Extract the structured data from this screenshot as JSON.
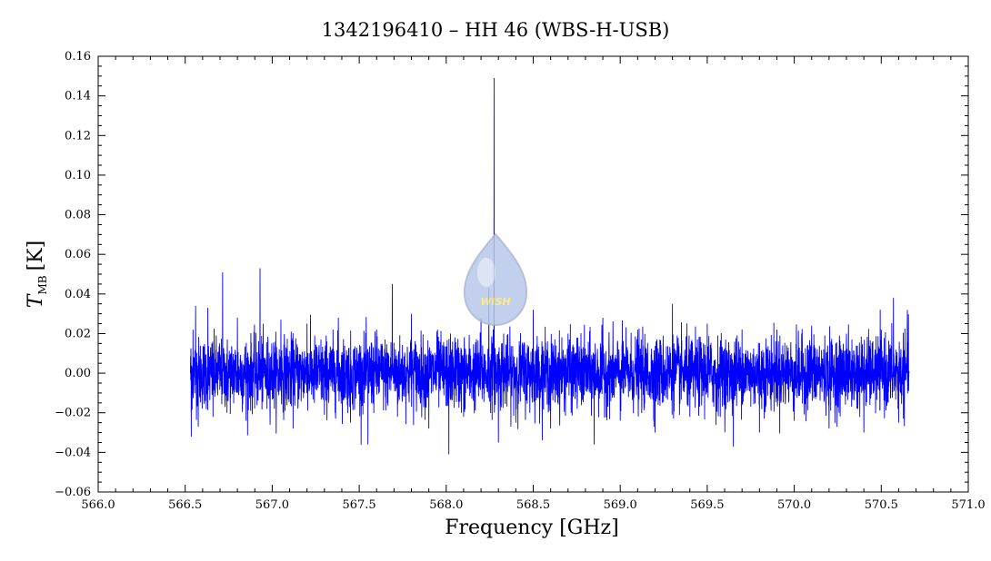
{
  "colors": {
    "series": "#0000ff",
    "axis": "#000000",
    "background": "#ffffff",
    "logo_fill": "#b8c8ea",
    "logo_text": "#ffe96a"
  },
  "logo": {
    "icon": "wish-drop-logo",
    "text": "WISH"
  },
  "chart_data": {
    "type": "line",
    "title": "1342196410 – HH 46 (WBS-H-USB)",
    "xlabel": "Frequency [GHz]",
    "ylabel": {
      "symbol": "T",
      "subscript": "MB",
      "unit": "[K]"
    },
    "xlim": [
      566.0,
      571.0
    ],
    "ylim": [
      -0.06,
      0.16
    ],
    "x_ticks": [
      566.0,
      566.5,
      567.0,
      567.5,
      568.0,
      568.5,
      569.0,
      569.5,
      570.0,
      570.5,
      571.0
    ],
    "x_tick_labels": [
      "566.0",
      "566.5",
      "567.0",
      "567.5",
      "568.0",
      "568.5",
      "569.0",
      "569.5",
      "570.0",
      "570.5",
      "571.0"
    ],
    "y_ticks": [
      -0.06,
      -0.04,
      -0.02,
      0.0,
      0.02,
      0.04,
      0.06,
      0.08,
      0.1,
      0.12,
      0.14,
      0.16
    ],
    "y_tick_labels": [
      "−0.06",
      "−0.04",
      "−0.02",
      "0.00",
      "0.02",
      "0.04",
      "0.06",
      "0.08",
      "0.10",
      "0.12",
      "0.14",
      "0.16"
    ],
    "grid": false,
    "legend": "none",
    "series": [
      {
        "data_range": [
          566.53,
          570.66
        ],
        "noise_rms": 0.009,
        "points": [
          [
            566.53,
            0.0
          ],
          [
            566.535,
            -0.032
          ],
          [
            566.545,
            0.022
          ],
          [
            566.56,
            0.034
          ],
          [
            566.575,
            -0.027
          ],
          [
            566.63,
            0.033
          ],
          [
            566.66,
            -0.022
          ],
          [
            566.715,
            0.051
          ],
          [
            566.74,
            -0.02
          ],
          [
            566.8,
            0.028
          ],
          [
            566.85,
            -0.024
          ],
          [
            566.93,
            0.053
          ],
          [
            566.97,
            -0.018
          ],
          [
            567.05,
            0.027
          ],
          [
            567.12,
            -0.028
          ],
          [
            567.2,
            0.025
          ],
          [
            567.3,
            -0.021
          ],
          [
            567.38,
            0.028
          ],
          [
            567.45,
            -0.025
          ],
          [
            567.55,
            -0.036
          ],
          [
            567.6,
            0.022
          ],
          [
            567.69,
            0.045
          ],
          [
            567.72,
            -0.022
          ],
          [
            567.8,
            0.03
          ],
          [
            567.9,
            -0.028
          ],
          [
            567.95,
            0.022
          ],
          [
            568.015,
            -0.041
          ],
          [
            568.05,
            0.018
          ],
          [
            568.1,
            -0.022
          ],
          [
            568.2,
            0.028
          ],
          [
            568.245,
            0.043
          ],
          [
            568.27,
            0.022
          ],
          [
            568.275,
            0.149
          ],
          [
            568.285,
            0.0
          ],
          [
            568.3,
            -0.035
          ],
          [
            568.33,
            0.02
          ],
          [
            568.4,
            -0.025
          ],
          [
            568.5,
            0.032
          ],
          [
            568.6,
            -0.028
          ],
          [
            568.7,
            0.02
          ],
          [
            568.85,
            -0.036
          ],
          [
            568.9,
            0.028
          ],
          [
            569.0,
            -0.024
          ],
          [
            569.1,
            0.022
          ],
          [
            569.2,
            -0.03
          ],
          [
            569.3,
            0.035
          ],
          [
            569.4,
            -0.022
          ],
          [
            569.5,
            0.025
          ],
          [
            569.55,
            -0.026
          ],
          [
            569.65,
            -0.037
          ],
          [
            569.7,
            0.022
          ],
          [
            569.8,
            -0.03
          ],
          [
            569.9,
            0.022
          ],
          [
            570.0,
            -0.024
          ],
          [
            570.1,
            0.024
          ],
          [
            570.2,
            -0.028
          ],
          [
            570.3,
            0.02
          ],
          [
            570.4,
            -0.03
          ],
          [
            570.5,
            0.022
          ],
          [
            570.57,
            0.038
          ],
          [
            570.6,
            -0.025
          ],
          [
            570.65,
            0.032
          ],
          [
            570.66,
            0.0
          ]
        ]
      }
    ]
  }
}
